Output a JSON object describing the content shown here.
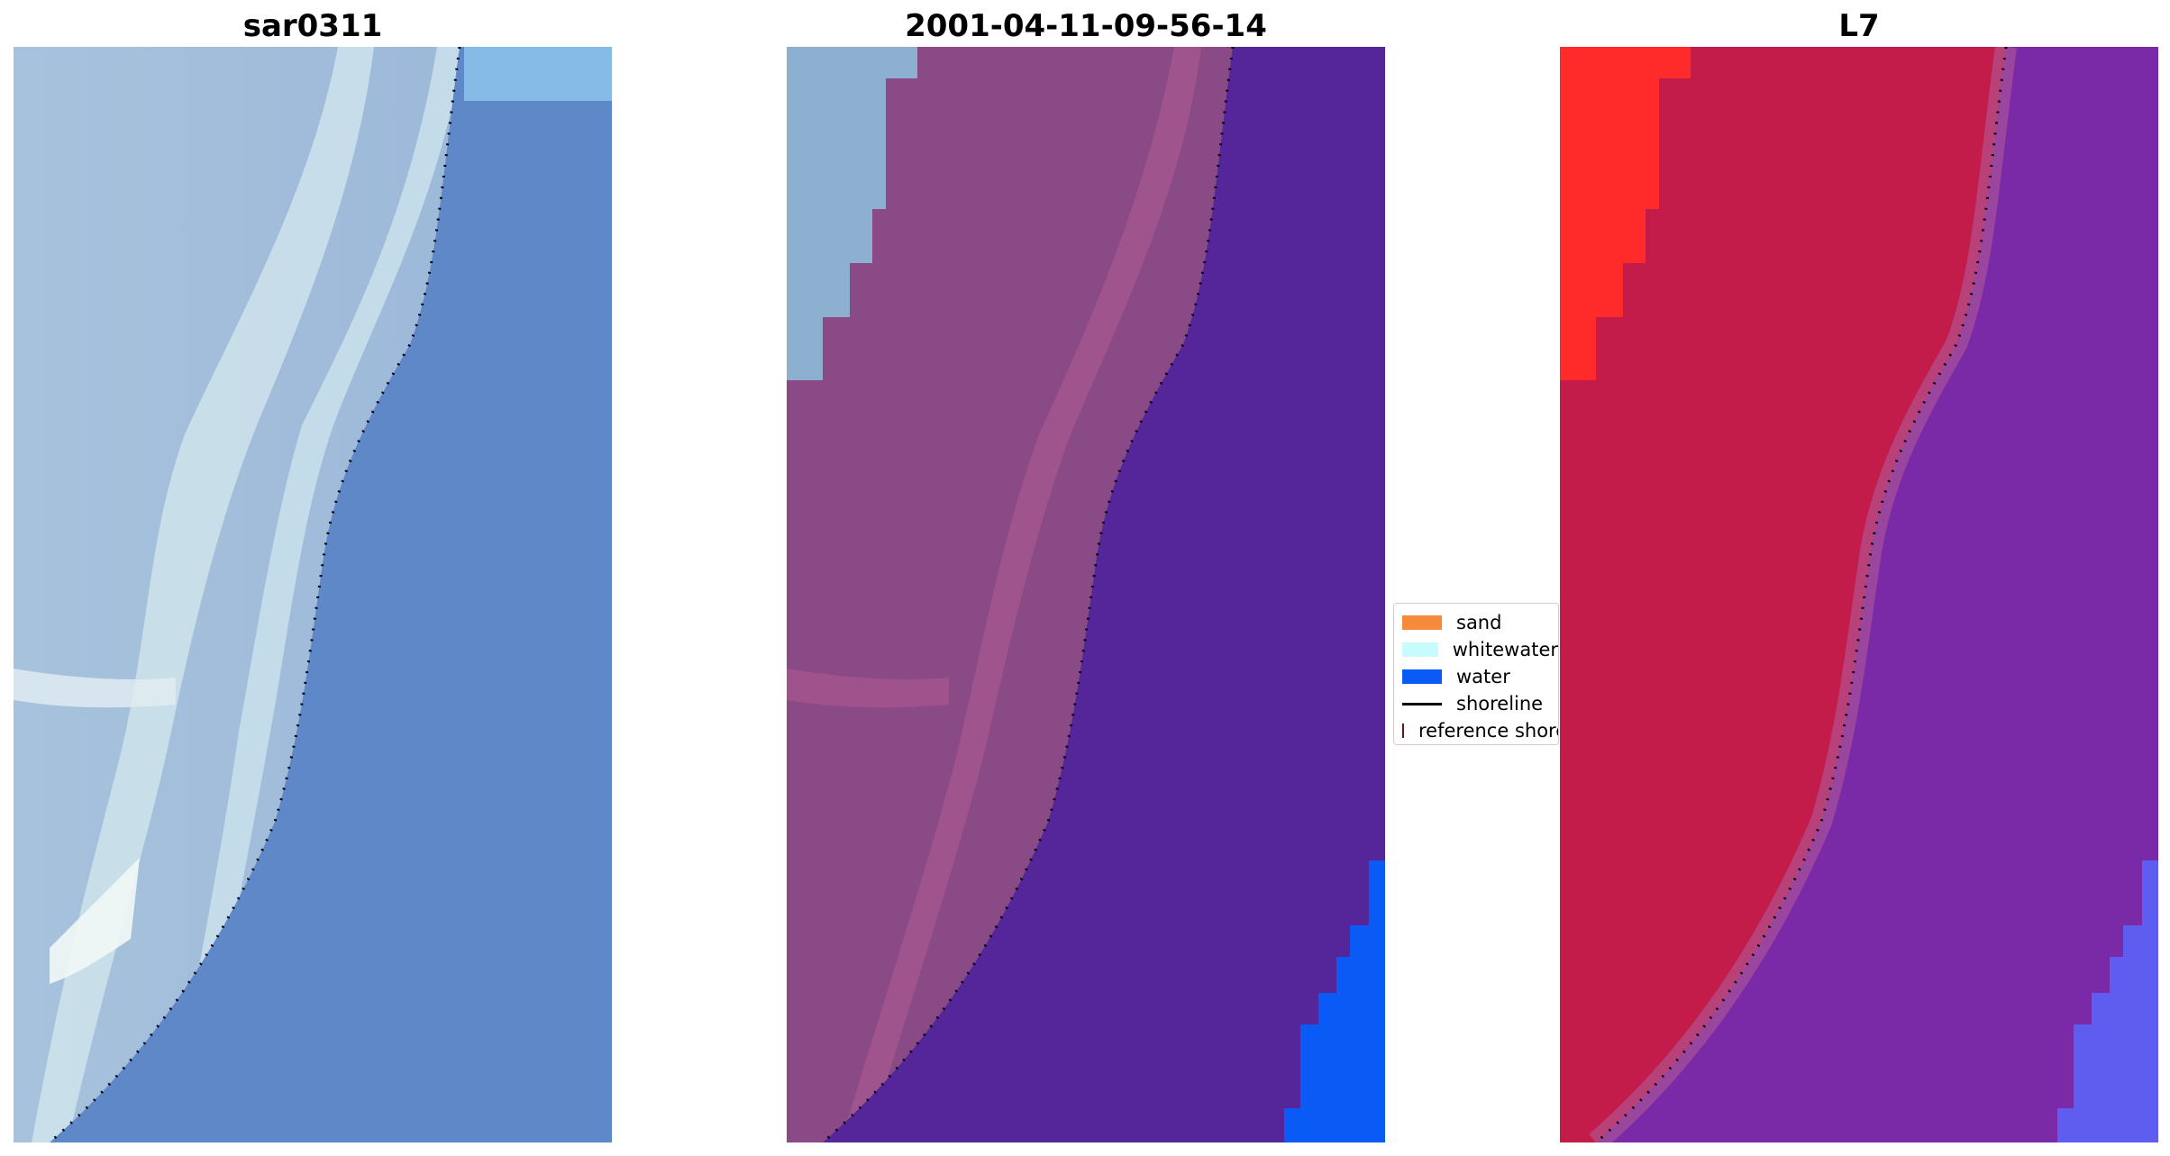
{
  "panels": [
    {
      "title": "sar0311",
      "kind": "rgb"
    },
    {
      "title": "2001-04-11-09-56-14",
      "kind": "classified"
    },
    {
      "title": "L7",
      "kind": "index"
    }
  ],
  "legend": {
    "items": [
      {
        "label": "sand",
        "type": "patch",
        "color": "#f58a3b"
      },
      {
        "label": "whitewater",
        "type": "patch",
        "color": "#c8fbfb"
      },
      {
        "label": "water",
        "type": "patch",
        "color": "#0a5af5"
      },
      {
        "label": "shoreline",
        "type": "line",
        "color": "#000000"
      },
      {
        "label": "reference shoreline",
        "type": "patch",
        "color": "#993333"
      }
    ]
  },
  "colors": {
    "rgb_land": "#9ab8d6",
    "rgb_water": "#5f88c8",
    "rgb_bright": "#e6f2f4",
    "class_land": "#8a4a86",
    "class_whitewater": "#8eb0d0",
    "class_water": "#55259a",
    "class_water_blue": "#0a5af5",
    "index_land": "#c41c4a",
    "index_red": "#ff2a2a",
    "index_water": "#7a2aa6",
    "index_blue": "#5f5cf0"
  }
}
